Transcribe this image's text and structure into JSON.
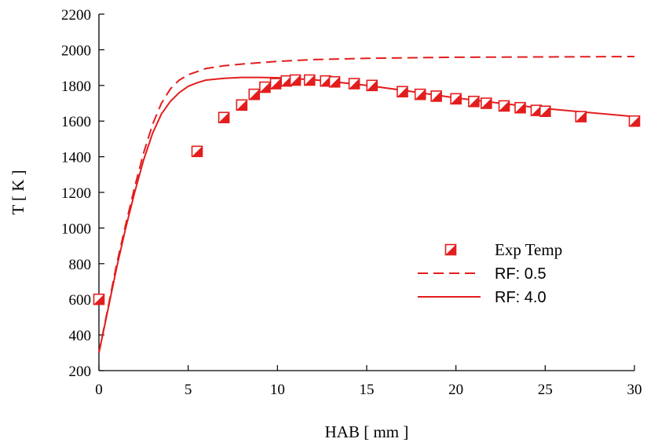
{
  "chart_data": {
    "type": "line",
    "xlabel": "HAB [ mm ]",
    "ylabel": "T [ K ]",
    "xlim": [
      0,
      30
    ],
    "ylim": [
      200,
      2200
    ],
    "xticks": [
      0,
      5,
      10,
      15,
      20,
      25,
      30
    ],
    "yticks": [
      200,
      400,
      600,
      800,
      1000,
      1200,
      1400,
      1600,
      1800,
      2000,
      2200
    ],
    "grid": false,
    "legend_position": "bottom-right",
    "accent_color": "#e31d1d",
    "series": [
      {
        "name": "Exp Temp",
        "kind": "scatter",
        "marker": "half-filled-square",
        "points": [
          [
            0,
            600
          ],
          [
            5.5,
            1430
          ],
          [
            7,
            1620
          ],
          [
            8,
            1690
          ],
          [
            8.7,
            1750
          ],
          [
            9.3,
            1790
          ],
          [
            9.9,
            1810
          ],
          [
            10.5,
            1825
          ],
          [
            11,
            1830
          ],
          [
            11.8,
            1830
          ],
          [
            12.7,
            1825
          ],
          [
            13.2,
            1820
          ],
          [
            14.3,
            1810
          ],
          [
            15.3,
            1800
          ],
          [
            17,
            1765
          ],
          [
            18,
            1750
          ],
          [
            18.9,
            1740
          ],
          [
            20,
            1725
          ],
          [
            21,
            1710
          ],
          [
            21.7,
            1700
          ],
          [
            22.7,
            1685
          ],
          [
            23.6,
            1675
          ],
          [
            24.5,
            1660
          ],
          [
            25,
            1655
          ],
          [
            27,
            1625
          ],
          [
            30,
            1600
          ]
        ]
      },
      {
        "name": "RF: 0.5",
        "kind": "line",
        "dash": "dashed",
        "points": [
          [
            0,
            300
          ],
          [
            0.5,
            550
          ],
          [
            1,
            800
          ],
          [
            1.5,
            1020
          ],
          [
            2,
            1230
          ],
          [
            2.5,
            1420
          ],
          [
            3,
            1580
          ],
          [
            3.5,
            1700
          ],
          [
            4,
            1780
          ],
          [
            4.5,
            1830
          ],
          [
            5,
            1860
          ],
          [
            6,
            1895
          ],
          [
            7,
            1910
          ],
          [
            8,
            1920
          ],
          [
            10,
            1935
          ],
          [
            12,
            1945
          ],
          [
            15,
            1952
          ],
          [
            20,
            1958
          ],
          [
            25,
            1960
          ],
          [
            30,
            1962
          ]
        ]
      },
      {
        "name": "RF: 4.0",
        "kind": "line",
        "dash": "solid",
        "points": [
          [
            0,
            300
          ],
          [
            0.5,
            540
          ],
          [
            1,
            780
          ],
          [
            1.5,
            1000
          ],
          [
            2,
            1200
          ],
          [
            2.5,
            1380
          ],
          [
            3,
            1530
          ],
          [
            3.5,
            1640
          ],
          [
            4,
            1710
          ],
          [
            4.5,
            1760
          ],
          [
            5,
            1795
          ],
          [
            5.5,
            1815
          ],
          [
            6,
            1830
          ],
          [
            7,
            1840
          ],
          [
            8,
            1845
          ],
          [
            9,
            1845
          ],
          [
            10,
            1843
          ],
          [
            11,
            1838
          ],
          [
            12,
            1832
          ],
          [
            13,
            1822
          ],
          [
            15,
            1800
          ],
          [
            17,
            1773
          ],
          [
            20,
            1730
          ],
          [
            25,
            1670
          ],
          [
            30,
            1625
          ]
        ]
      }
    ]
  }
}
